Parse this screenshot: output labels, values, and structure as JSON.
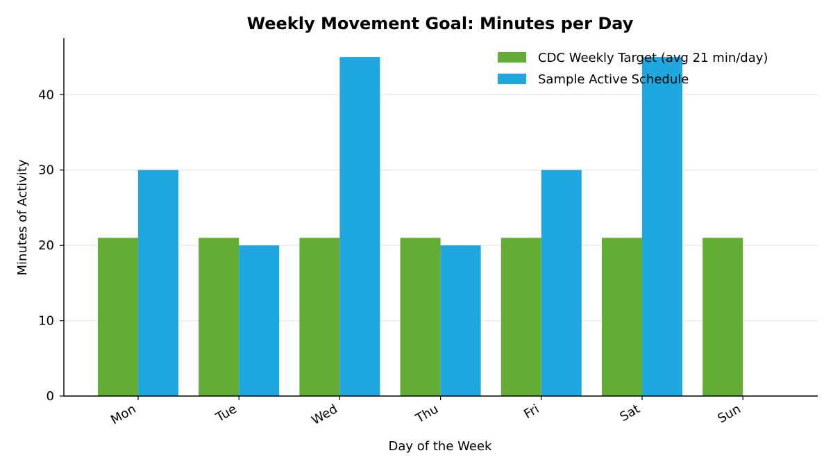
{
  "chart_data": {
    "type": "bar",
    "title": "Weekly Movement Goal: Minutes per Day",
    "xlabel": "Day of the Week",
    "ylabel": "Minutes of Activity",
    "categories": [
      "Mon",
      "Tue",
      "Wed",
      "Thu",
      "Fri",
      "Sat",
      "Sun"
    ],
    "series": [
      {
        "name": "CDC Weekly Target (avg 21 min/day)",
        "values": [
          21,
          21,
          21,
          21,
          21,
          21,
          21
        ],
        "color": "#63ad34"
      },
      {
        "name": "Sample Active Schedule",
        "values": [
          30,
          20,
          45,
          20,
          30,
          45,
          0
        ],
        "color": "#1fa7e0"
      }
    ],
    "ylim": [
      0,
      47.5
    ],
    "yticks": [
      0,
      10,
      20,
      30,
      40
    ],
    "grid": "y",
    "legend_position": "top-right"
  }
}
